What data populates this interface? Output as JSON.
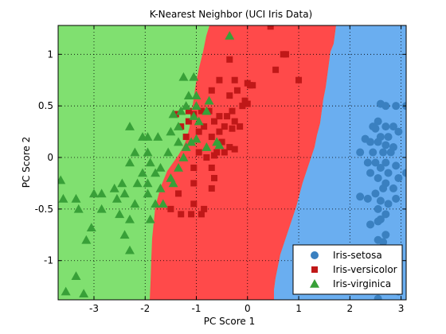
{
  "chart_data": {
    "type": "scatter",
    "title": "K-Nearest Neighbor (UCI Iris Data)",
    "xlabel": "PC Score 1",
    "ylabel": "PC Score 2",
    "xlim": [
      -3.7,
      3.1
    ],
    "ylim": [
      -1.38,
      1.28
    ],
    "xticks": [
      -3,
      -2,
      -1,
      0,
      1,
      2,
      3
    ],
    "yticks": [
      1,
      0.5,
      0,
      -0.5,
      -1
    ],
    "grid": "on",
    "legend_position": "bottom-right",
    "regions": [
      {
        "class": "Iris-virginica",
        "color": "#80e070"
      },
      {
        "class": "Iris-versicolor",
        "color": "#ff4a4a"
      },
      {
        "class": "Iris-setosa",
        "color": "#6aaef0"
      }
    ],
    "series": [
      {
        "name": "Iris-setosa",
        "marker": "circle",
        "color": "#3a80c0",
        "points": [
          [
            2.9,
            0.5
          ],
          [
            3.1,
            0.5
          ],
          [
            2.6,
            0.52
          ],
          [
            2.7,
            0.5
          ],
          [
            2.45,
            0.3
          ],
          [
            2.55,
            0.35
          ],
          [
            2.7,
            0.3
          ],
          [
            2.85,
            0.3
          ],
          [
            2.5,
            0.28
          ],
          [
            2.3,
            0.18
          ],
          [
            2.6,
            0.2
          ],
          [
            2.75,
            0.2
          ],
          [
            2.95,
            0.25
          ],
          [
            2.4,
            0.15
          ],
          [
            2.55,
            0.15
          ],
          [
            2.7,
            0.12
          ],
          [
            2.85,
            0.1
          ],
          [
            2.2,
            0.05
          ],
          [
            2.45,
            0.05
          ],
          [
            2.65,
            0.05
          ],
          [
            2.8,
            0.05
          ],
          [
            2.35,
            -0.05
          ],
          [
            2.5,
            -0.05
          ],
          [
            2.7,
            -0.05
          ],
          [
            2.9,
            -0.08
          ],
          [
            2.6,
            -0.1
          ],
          [
            2.75,
            -0.15
          ],
          [
            2.95,
            -0.2
          ],
          [
            3.1,
            -0.15
          ],
          [
            2.4,
            -0.15
          ],
          [
            2.55,
            -0.2
          ],
          [
            2.7,
            -0.25
          ],
          [
            2.85,
            -0.3
          ],
          [
            2.65,
            -0.3
          ],
          [
            2.5,
            -0.35
          ],
          [
            2.2,
            -0.38
          ],
          [
            2.35,
            -0.4
          ],
          [
            2.6,
            -0.42
          ],
          [
            2.75,
            -0.45
          ],
          [
            2.9,
            -0.4
          ],
          [
            2.55,
            -0.5
          ],
          [
            2.7,
            -0.55
          ],
          [
            2.6,
            -0.6
          ],
          [
            2.55,
            -0.62
          ],
          [
            2.4,
            -0.65
          ],
          [
            2.7,
            -0.75
          ],
          [
            2.55,
            -0.8
          ],
          [
            2.65,
            -0.82
          ],
          [
            2.6,
            -0.9
          ],
          [
            2.9,
            -0.95
          ],
          [
            2.65,
            -1.05
          ],
          [
            2.8,
            -1.15
          ],
          [
            2.95,
            -1.3
          ],
          [
            2.55,
            -1.37
          ]
        ]
      },
      {
        "name": "Iris-versicolor",
        "marker": "square",
        "color": "#c01818",
        "points": [
          [
            0.45,
            1.27
          ],
          [
            0.7,
            1.0
          ],
          [
            0.75,
            1.0
          ],
          [
            -0.35,
            0.95
          ],
          [
            -0.25,
            0.75
          ],
          [
            0.0,
            0.72
          ],
          [
            0.05,
            0.7
          ],
          [
            0.1,
            0.7
          ],
          [
            1.0,
            0.75
          ],
          [
            -0.55,
            0.75
          ],
          [
            -0.7,
            0.65
          ],
          [
            -0.2,
            0.65
          ],
          [
            -0.35,
            0.6
          ],
          [
            -0.05,
            0.55
          ],
          [
            0.0,
            0.52
          ],
          [
            -0.1,
            0.5
          ],
          [
            -0.3,
            0.45
          ],
          [
            -1.15,
            0.45
          ],
          [
            -1.05,
            0.42
          ],
          [
            -0.9,
            0.45
          ],
          [
            -0.75,
            0.45
          ],
          [
            -0.55,
            0.4
          ],
          [
            -0.65,
            0.35
          ],
          [
            -0.4,
            0.4
          ],
          [
            -0.25,
            0.35
          ],
          [
            -0.15,
            0.3
          ],
          [
            -0.3,
            0.28
          ],
          [
            -0.45,
            0.3
          ],
          [
            -0.55,
            0.25
          ],
          [
            -0.85,
            0.3
          ],
          [
            -1.15,
            0.35
          ],
          [
            -0.95,
            0.25
          ],
          [
            -0.7,
            0.2
          ],
          [
            -0.5,
            0.15
          ],
          [
            -0.35,
            0.1
          ],
          [
            -0.25,
            0.08
          ],
          [
            -0.6,
            0.05
          ],
          [
            -0.45,
            0.05
          ],
          [
            -0.65,
            0.02
          ],
          [
            -0.8,
            0.0
          ],
          [
            -0.95,
            0.05
          ],
          [
            -0.7,
            -0.1
          ],
          [
            -1.05,
            -0.1
          ],
          [
            -0.65,
            -0.2
          ],
          [
            -0.7,
            -0.3
          ],
          [
            -1.05,
            -0.25
          ],
          [
            -1.35,
            -0.35
          ],
          [
            -1.5,
            -0.5
          ],
          [
            -1.05,
            -0.45
          ],
          [
            -0.85,
            -0.5
          ],
          [
            -1.3,
            -0.55
          ],
          [
            -1.1,
            -0.55
          ],
          [
            -0.9,
            -0.55
          ],
          [
            0.55,
            0.85
          ],
          [
            -1.4,
            0.42
          ],
          [
            -1.3,
            0.3
          ],
          [
            -1.2,
            0.2
          ]
        ]
      },
      {
        "name": "Iris-virginica",
        "marker": "triangle",
        "color": "#38a038",
        "points": [
          [
            -0.35,
            1.18
          ],
          [
            -1.05,
            0.78
          ],
          [
            -1.25,
            0.78
          ],
          [
            -1.0,
            0.6
          ],
          [
            -1.15,
            0.6
          ],
          [
            -0.75,
            0.55
          ],
          [
            -1.0,
            0.5
          ],
          [
            -1.2,
            0.5
          ],
          [
            -0.8,
            0.45
          ],
          [
            -1.05,
            0.4
          ],
          [
            -1.3,
            0.45
          ],
          [
            -0.95,
            0.35
          ],
          [
            -1.45,
            0.42
          ],
          [
            -1.35,
            0.3
          ],
          [
            -2.3,
            0.3
          ],
          [
            -1.5,
            0.25
          ],
          [
            -1.75,
            0.2
          ],
          [
            -1.95,
            0.2
          ],
          [
            -2.05,
            0.2
          ],
          [
            -1.0,
            0.18
          ],
          [
            -1.1,
            0.15
          ],
          [
            -0.6,
            0.15
          ],
          [
            -0.55,
            0.12
          ],
          [
            -1.35,
            0.15
          ],
          [
            -1.2,
            0.1
          ],
          [
            -0.8,
            0.1
          ],
          [
            -2.2,
            0.05
          ],
          [
            -1.95,
            0.05
          ],
          [
            -1.55,
            0.05
          ],
          [
            -1.25,
            0.0
          ],
          [
            -2.3,
            -0.05
          ],
          [
            -1.9,
            -0.05
          ],
          [
            -1.7,
            -0.1
          ],
          [
            -1.35,
            -0.1
          ],
          [
            -2.05,
            -0.15
          ],
          [
            -1.8,
            -0.15
          ],
          [
            -1.5,
            -0.2
          ],
          [
            -1.45,
            -0.25
          ],
          [
            -2.15,
            -0.25
          ],
          [
            -1.95,
            -0.25
          ],
          [
            -2.6,
            -0.3
          ],
          [
            -2.45,
            -0.25
          ],
          [
            -1.7,
            -0.3
          ],
          [
            -2.85,
            -0.35
          ],
          [
            -3.0,
            -0.35
          ],
          [
            -2.4,
            -0.35
          ],
          [
            -1.95,
            -0.35
          ],
          [
            -3.35,
            -0.4
          ],
          [
            -3.6,
            -0.4
          ],
          [
            -2.55,
            -0.4
          ],
          [
            -2.2,
            -0.45
          ],
          [
            -1.8,
            -0.45
          ],
          [
            -1.65,
            -0.45
          ],
          [
            -3.65,
            -0.22
          ],
          [
            -2.85,
            -0.5
          ],
          [
            -3.3,
            -0.5
          ],
          [
            -2.5,
            -0.55
          ],
          [
            -2.3,
            -0.6
          ],
          [
            -1.9,
            -0.6
          ],
          [
            -3.05,
            -0.68
          ],
          [
            -2.4,
            -0.75
          ],
          [
            -3.15,
            -0.8
          ],
          [
            -2.3,
            -0.9
          ],
          [
            -3.35,
            -1.15
          ],
          [
            -3.55,
            -1.3
          ],
          [
            -3.2,
            -1.32
          ]
        ]
      }
    ]
  }
}
